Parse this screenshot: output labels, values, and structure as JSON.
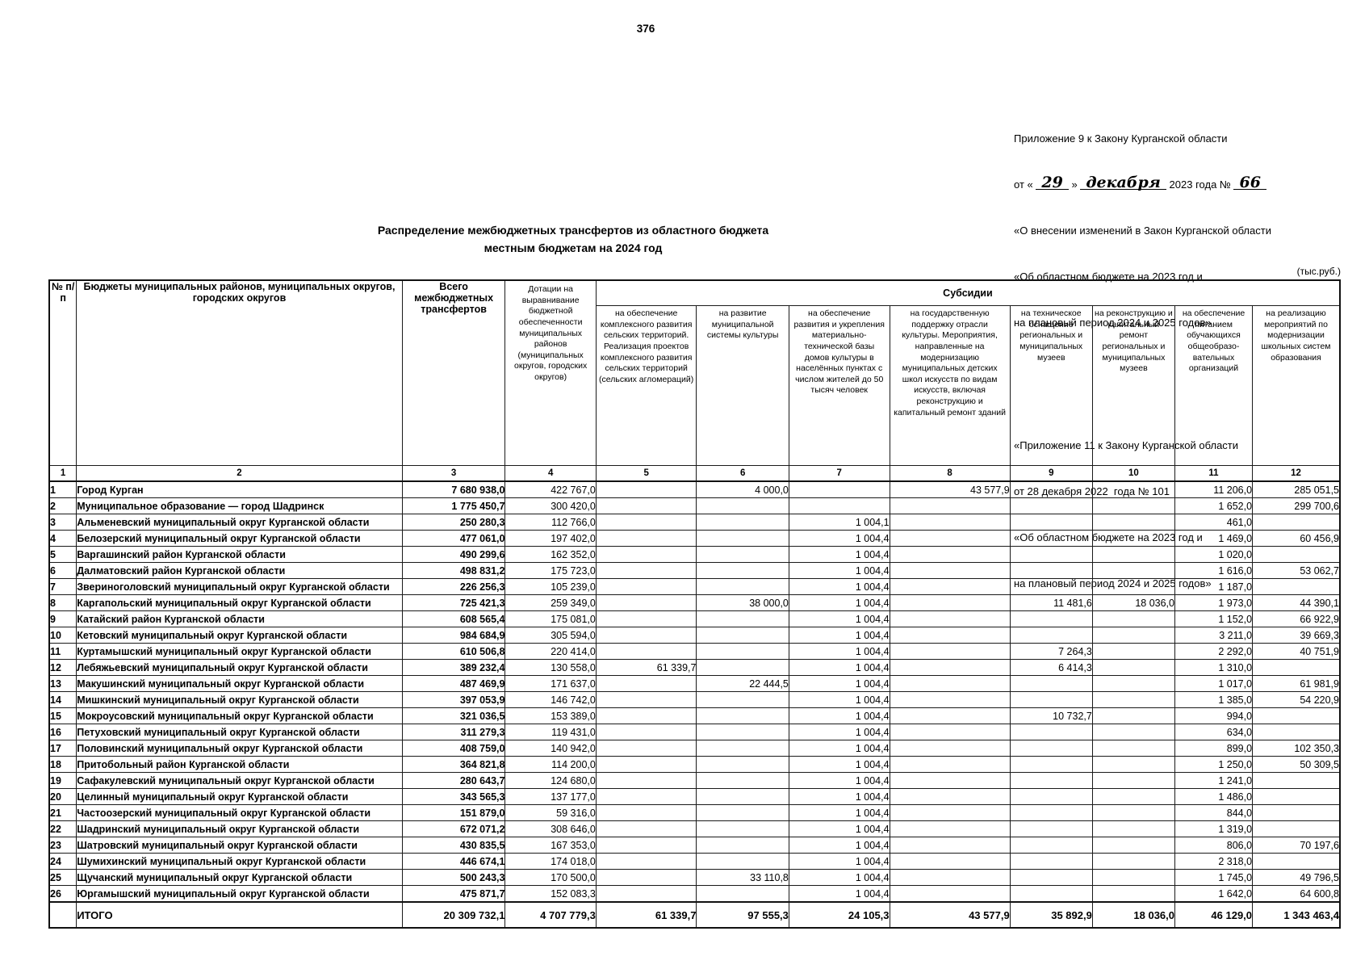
{
  "page_number": "376",
  "annex1": {
    "line1": "Приложение 9 к Закону Курганской области",
    "line2_prefix": "от «",
    "line2_day": "29",
    "line2_close": "»",
    "line2_month": "декабря",
    "line2_mid": "2023 года №",
    "line2_number": "66",
    "line3": "«О внесении изменений в Закон Курганской области",
    "line4": "«Об областном бюджете на 2023 год и",
    "line5": "на плановый период 2024 и 2025 годов»"
  },
  "annex2": {
    "line1": "«Приложение 11 к Закону Курганской области",
    "line2": "от 28 декабря 2022  года № 101",
    "line3": "«Об областном бюджете на 2023 год и",
    "line4": "на плановый период 2024 и 2025 годов»"
  },
  "title_line1": "Распределение межбюджетных трансфертов из областного бюджета",
  "title_line2": "местным бюджетам на 2024 год",
  "units_label": "(тыс.руб.)",
  "table": {
    "headers": {
      "num": "№ п/п",
      "budgets": "Бюджеты муниципальных районов, муниципальных округов, городских округов",
      "total": "Всего межбюджетных трансфертов",
      "dotations": "Дотации на выравнивание бюджетной обеспеченности муниципальных районов (муниципальных округов, городских округов)",
      "subsidies_group": "Субсидии",
      "subsidy_cols": [
        "на обеспечение комплексного развития сельских территорий. Реализация проектов комплексного развития сельских территорий (сельских агломераций)",
        "на развитие муниципальной системы культуры",
        "на обеспечение развития и укрепления материально-технической базы домов культуры в населённых пунктах с числом жителей до 50 тысяч человек",
        "на государственную поддержку отрасли культуры. Мероприятия, направленные на модернизацию муниципальных детских школ искусств по видам искусств, включая реконструкцию и капитальный ремонт зданий",
        "на техническое оснащение региональных и муниципальных музеев",
        "на реконструкцию и капитальный ремонт региональных и муниципальных музеев",
        "на обеспечение питанием обучающихся общеобразо-вательных организаций",
        "на реализацию мероприятий по модернизации школьных систем образования"
      ]
    },
    "col_numbers": [
      "1",
      "2",
      "3",
      "4",
      "5",
      "6",
      "7",
      "8",
      "9",
      "10",
      "11",
      "12"
    ],
    "rows": [
      {
        "n": "1",
        "name": "Город Курган",
        "v": [
          "7 680 938,0",
          "422 767,0",
          "",
          "4 000,0",
          "",
          "43 577,9",
          "",
          "",
          "11 206,0",
          "285 051,5"
        ]
      },
      {
        "n": "2",
        "name": "Муниципальное образование — город Шадринск",
        "v": [
          "1 775 450,7",
          "300 420,0",
          "",
          "",
          "",
          "",
          "",
          "",
          "1 652,0",
          "299 700,6"
        ]
      },
      {
        "n": "3",
        "name": "Альменевский муниципальный округ Курганской области",
        "v": [
          "250 280,3",
          "112 766,0",
          "",
          "",
          "1 004,1",
          "",
          "",
          "",
          "461,0",
          ""
        ]
      },
      {
        "n": "4",
        "name": "Белозерский муниципальный округ Курганской области",
        "v": [
          "477 061,0",
          "197 402,0",
          "",
          "",
          "1 004,4",
          "",
          "",
          "",
          "1 469,0",
          "60 456,9"
        ]
      },
      {
        "n": "5",
        "name": "Варгашинский район Курганской области",
        "v": [
          "490 299,6",
          "162 352,0",
          "",
          "",
          "1 004,4",
          "",
          "",
          "",
          "1 020,0",
          ""
        ]
      },
      {
        "n": "6",
        "name": "Далматовский район Курганской области",
        "v": [
          "498 831,2",
          "175 723,0",
          "",
          "",
          "1 004,4",
          "",
          "",
          "",
          "1 616,0",
          "53 062,7"
        ]
      },
      {
        "n": "7",
        "name": "Звериноголовский муниципальный округ Курганской области",
        "v": [
          "226 256,3",
          "105 239,0",
          "",
          "",
          "1 004,4",
          "",
          "",
          "",
          "1 187,0",
          ""
        ]
      },
      {
        "n": "8",
        "name": "Каргапольский муниципальный округ Курганской области",
        "v": [
          "725 421,3",
          "259 349,0",
          "",
          "38 000,0",
          "1 004,4",
          "",
          "11 481,6",
          "18 036,0",
          "1 973,0",
          "44 390,1"
        ]
      },
      {
        "n": "9",
        "name": "Катайский район Курганской области",
        "v": [
          "608 565,4",
          "175 081,0",
          "",
          "",
          "1 004,4",
          "",
          "",
          "",
          "1 152,0",
          "66 922,9"
        ]
      },
      {
        "n": "10",
        "name": "Кетовский муниципальный округ Курганской области",
        "v": [
          "984 684,9",
          "305 594,0",
          "",
          "",
          "1 004,4",
          "",
          "",
          "",
          "3 211,0",
          "39 669,3"
        ]
      },
      {
        "n": "11",
        "name": "Куртамышский муниципальный округ Курганской области",
        "v": [
          "610 506,8",
          "220 414,0",
          "",
          "",
          "1 004,4",
          "",
          "7 264,3",
          "",
          "2 292,0",
          "40 751,9"
        ]
      },
      {
        "n": "12",
        "name": "Лебяжьевский муниципальный округ Курганской области",
        "v": [
          "389 232,4",
          "130 558,0",
          "61 339,7",
          "",
          "1 004,4",
          "",
          "6 414,3",
          "",
          "1 310,0",
          ""
        ]
      },
      {
        "n": "13",
        "name": "Макушинский муниципальный округ Курганской области",
        "v": [
          "487 469,9",
          "171 637,0",
          "",
          "22 444,5",
          "1 004,4",
          "",
          "",
          "",
          "1 017,0",
          "61 981,9"
        ]
      },
      {
        "n": "14",
        "name": "Мишкинский муниципальный округ Курганской области",
        "v": [
          "397 053,9",
          "146 742,0",
          "",
          "",
          "1 004,4",
          "",
          "",
          "",
          "1 385,0",
          "54 220,9"
        ]
      },
      {
        "n": "15",
        "name": "Мокроусовский муниципальный округ Курганской области",
        "v": [
          "321 036,5",
          "153 389,0",
          "",
          "",
          "1 004,4",
          "",
          "10 732,7",
          "",
          "994,0",
          ""
        ]
      },
      {
        "n": "16",
        "name": "Петуховский муниципальный округ Курганской области",
        "v": [
          "311 279,3",
          "119 431,0",
          "",
          "",
          "1 004,4",
          "",
          "",
          "",
          "634,0",
          ""
        ]
      },
      {
        "n": "17",
        "name": "Половинский муниципальный округ Курганской области",
        "v": [
          "408 759,0",
          "140 942,0",
          "",
          "",
          "1 004,4",
          "",
          "",
          "",
          "899,0",
          "102 350,3"
        ]
      },
      {
        "n": "18",
        "name": "Притобольный район Курганской области",
        "v": [
          "364 821,8",
          "114 200,0",
          "",
          "",
          "1 004,4",
          "",
          "",
          "",
          "1 250,0",
          "50 309,5"
        ]
      },
      {
        "n": "19",
        "name": "Сафакулевский муниципальный округ Курганской области",
        "v": [
          "280 643,7",
          "124 680,0",
          "",
          "",
          "1 004,4",
          "",
          "",
          "",
          "1 241,0",
          ""
        ]
      },
      {
        "n": "20",
        "name": "Целинный муниципальный округ Курганской области",
        "v": [
          "343 565,3",
          "137 177,0",
          "",
          "",
          "1 004,4",
          "",
          "",
          "",
          "1 486,0",
          ""
        ]
      },
      {
        "n": "21",
        "name": "Частоозерский муниципальный округ Курганской области",
        "v": [
          "151 879,0",
          "59 316,0",
          "",
          "",
          "1 004,4",
          "",
          "",
          "",
          "844,0",
          ""
        ]
      },
      {
        "n": "22",
        "name": "Шадринский муниципальный округ Курганской области",
        "v": [
          "672 071,2",
          "308 646,0",
          "",
          "",
          "1 004,4",
          "",
          "",
          "",
          "1 319,0",
          ""
        ]
      },
      {
        "n": "23",
        "name": "Шатровский муниципальный округ Курганской области",
        "v": [
          "430 835,5",
          "167 353,0",
          "",
          "",
          "1 004,4",
          "",
          "",
          "",
          "806,0",
          "70 197,6"
        ]
      },
      {
        "n": "24",
        "name": "Шумихинский муниципальный округ Курганской области",
        "v": [
          "446 674,1",
          "174 018,0",
          "",
          "",
          "1 004,4",
          "",
          "",
          "",
          "2 318,0",
          ""
        ]
      },
      {
        "n": "25",
        "name": "Щучанский муниципальный округ Курганской области",
        "v": [
          "500 243,3",
          "170 500,0",
          "",
          "33 110,8",
          "1 004,4",
          "",
          "",
          "",
          "1 745,0",
          "49 796,5"
        ]
      },
      {
        "n": "26",
        "name": "Юргамышский муниципальный округ Курганской области",
        "v": [
          "475 871,7",
          "152 083,3",
          "",
          "",
          "1 004,4",
          "",
          "",
          "",
          "1 642,0",
          "64 600,8"
        ]
      }
    ],
    "total_row": {
      "label": "ИТОГО",
      "v": [
        "20 309 732,1",
        "4 707 779,3",
        "61 339,7",
        "97 555,3",
        "24 105,3",
        "43 577,9",
        "35 892,9",
        "18 036,0",
        "46 129,0",
        "1 343 463,4"
      ]
    }
  }
}
